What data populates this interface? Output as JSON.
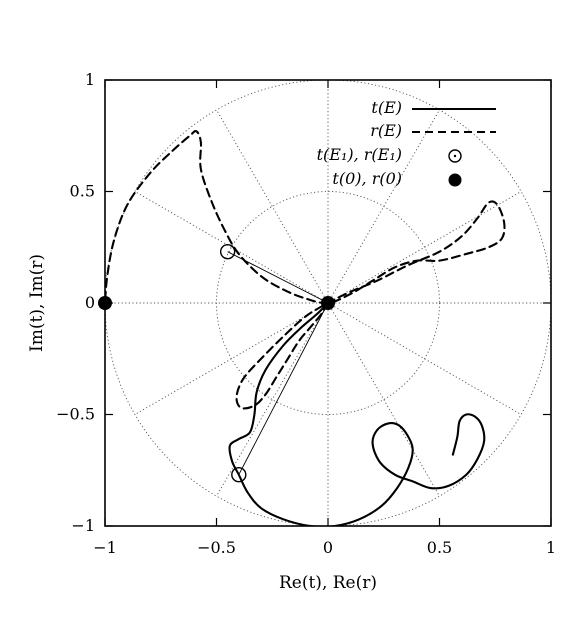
{
  "chart_data": {
    "type": "line",
    "title": "",
    "xlabel": "Re(t), Re(r)",
    "ylabel": "Im(t), Im(r)",
    "xlim": [
      -1,
      1
    ],
    "ylim": [
      -1,
      1
    ],
    "xticks": [
      -1,
      -0.5,
      0,
      0.5,
      1
    ],
    "yticks": [
      -1,
      -0.5,
      0,
      0.5,
      1
    ],
    "xtick_labels": [
      "−1",
      "−0.5",
      "0",
      "0.5",
      "1"
    ],
    "ytick_labels": [
      "−1",
      "−0.5",
      "0",
      "0.5",
      "1"
    ],
    "grid": "polar dotted: circles at |z|=0.5 and |z|=1, radial lines every 30 degrees",
    "legend_position": "top-right",
    "series": [
      {
        "name": "t(E)",
        "style": "solid",
        "points": [
          [
            0,
            0
          ],
          [
            -0.05,
            -0.05
          ],
          [
            -0.12,
            -0.11
          ],
          [
            -0.2,
            -0.19
          ],
          [
            -0.28,
            -0.3
          ],
          [
            -0.32,
            -0.4
          ],
          [
            -0.33,
            -0.5
          ],
          [
            -0.35,
            -0.58
          ],
          [
            -0.4,
            -0.61
          ],
          [
            -0.44,
            -0.64
          ],
          [
            -0.43,
            -0.71
          ],
          [
            -0.4,
            -0.77
          ],
          [
            -0.36,
            -0.85
          ],
          [
            -0.3,
            -0.92
          ],
          [
            -0.2,
            -0.97
          ],
          [
            -0.08,
            -1.0
          ],
          [
            0.03,
            -1.0
          ],
          [
            0.14,
            -0.97
          ],
          [
            0.24,
            -0.91
          ],
          [
            0.31,
            -0.83
          ],
          [
            0.36,
            -0.74
          ],
          [
            0.38,
            -0.66
          ],
          [
            0.36,
            -0.6
          ],
          [
            0.32,
            -0.55
          ],
          [
            0.27,
            -0.54
          ],
          [
            0.22,
            -0.57
          ],
          [
            0.2,
            -0.63
          ],
          [
            0.23,
            -0.71
          ],
          [
            0.3,
            -0.77
          ],
          [
            0.38,
            -0.8
          ],
          [
            0.46,
            -0.83
          ],
          [
            0.54,
            -0.82
          ],
          [
            0.62,
            -0.77
          ],
          [
            0.67,
            -0.7
          ],
          [
            0.7,
            -0.62
          ],
          [
            0.69,
            -0.55
          ],
          [
            0.66,
            -0.51
          ],
          [
            0.62,
            -0.5
          ],
          [
            0.59,
            -0.53
          ],
          [
            0.58,
            -0.6
          ],
          [
            0.56,
            -0.68
          ]
        ]
      },
      {
        "name": "r(E)",
        "style": "dashed",
        "points": [
          [
            0,
            0
          ],
          [
            -0.03,
            -0.05
          ],
          [
            -0.08,
            -0.11
          ],
          [
            -0.13,
            -0.17
          ],
          [
            -0.18,
            -0.25
          ],
          [
            -0.23,
            -0.33
          ],
          [
            -0.28,
            -0.41
          ],
          [
            -0.33,
            -0.46
          ],
          [
            -0.39,
            -0.47
          ],
          [
            -0.41,
            -0.42
          ],
          [
            -0.38,
            -0.34
          ],
          [
            -0.3,
            -0.25
          ],
          [
            -0.2,
            -0.15
          ],
          [
            -0.1,
            -0.06
          ],
          [
            0,
            0
          ],
          [
            0.1,
            0.05
          ],
          [
            0.22,
            0.1
          ],
          [
            0.36,
            0.17
          ],
          [
            0.5,
            0.23
          ],
          [
            0.6,
            0.3
          ],
          [
            0.67,
            0.38
          ],
          [
            0.72,
            0.45
          ],
          [
            0.76,
            0.44
          ],
          [
            0.79,
            0.36
          ],
          [
            0.78,
            0.29
          ],
          [
            0.72,
            0.25
          ],
          [
            0.62,
            0.22
          ],
          [
            0.5,
            0.19
          ],
          [
            0.4,
            0.19
          ],
          [
            0.3,
            0.16
          ],
          [
            0.2,
            0.1
          ],
          [
            0.1,
            0.04
          ],
          [
            0,
            0
          ],
          [
            -0.1,
            0.02
          ],
          [
            -0.2,
            0.06
          ],
          [
            -0.3,
            0.12
          ],
          [
            -0.4,
            0.22
          ],
          [
            -0.46,
            0.32
          ],
          [
            -0.52,
            0.45
          ],
          [
            -0.57,
            0.6
          ],
          [
            -0.57,
            0.72
          ],
          [
            -0.59,
            0.77
          ],
          [
            -0.62,
            0.75
          ],
          [
            -0.7,
            0.68
          ],
          [
            -0.8,
            0.58
          ],
          [
            -0.9,
            0.44
          ],
          [
            -0.96,
            0.28
          ],
          [
            -0.99,
            0.12
          ],
          [
            -1,
            0
          ]
        ]
      }
    ],
    "markers": [
      {
        "name": "t(E₁), r(E₁)",
        "style": "open-circle",
        "points": [
          [
            -0.45,
            0.23
          ],
          [
            -0.4,
            -0.77
          ]
        ]
      },
      {
        "name": "t(0), r(0)",
        "style": "filled-circle",
        "points": [
          [
            -1,
            0
          ],
          [
            0,
            0
          ]
        ]
      }
    ],
    "connectors": [
      [
        [
          0,
          0
        ],
        [
          -0.45,
          0.23
        ]
      ],
      [
        [
          0,
          0
        ],
        [
          -0.4,
          -0.77
        ]
      ]
    ]
  }
}
